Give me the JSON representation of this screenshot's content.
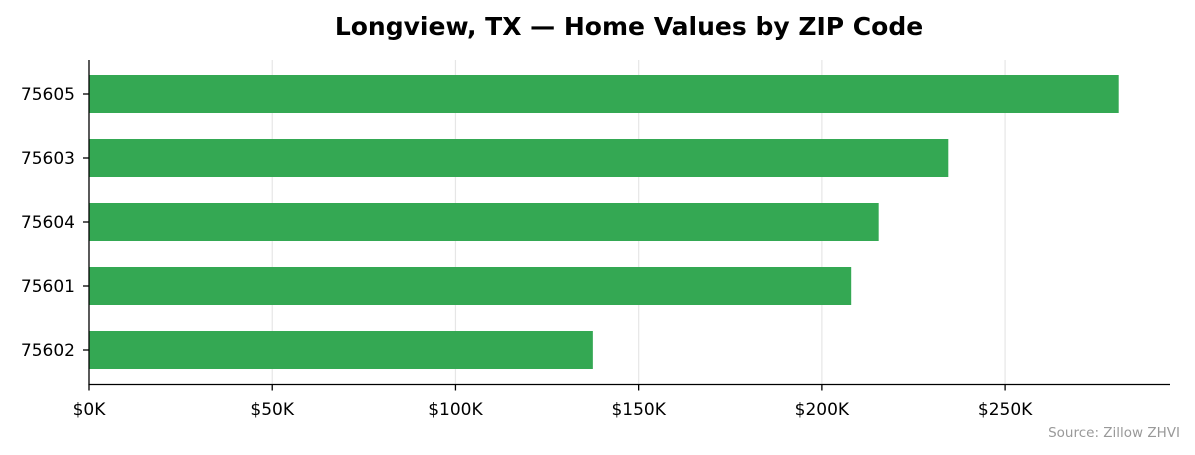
{
  "chart_data": {
    "type": "bar",
    "orientation": "horizontal",
    "title": "Longview, TX — Home Values by ZIP Code",
    "categories": [
      "75605",
      "75603",
      "75604",
      "75601",
      "75602"
    ],
    "values": [
      281000,
      234500,
      215500,
      208000,
      137500
    ],
    "xlim": [
      0,
      295000
    ],
    "xticks": [
      0,
      50000,
      100000,
      150000,
      200000,
      250000
    ],
    "xtick_labels": [
      "$0K",
      "$50K",
      "$100K",
      "$150K",
      "$200K",
      "$250K"
    ],
    "xlabel": "",
    "ylabel": "",
    "grid": "vertical",
    "bar_color": "#34a853",
    "grid_color": "#e6e6e6",
    "source_note": "Source: Zillow ZHVI"
  }
}
